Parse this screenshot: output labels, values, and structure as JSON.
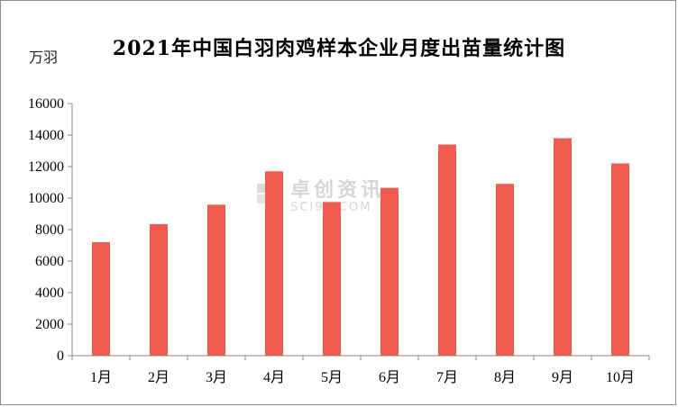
{
  "chart_data": {
    "type": "bar",
    "title": "2021年中国白羽肉鸡样本企业月度出苗量统计图",
    "ylabel": "万羽",
    "xlabel": "",
    "categories": [
      "1月",
      "2月",
      "3月",
      "4月",
      "5月",
      "6月",
      "7月",
      "8月",
      "9月",
      "10月"
    ],
    "values": [
      7200,
      8350,
      9580,
      11700,
      9750,
      10650,
      13400,
      10900,
      13800,
      12200
    ],
    "ylim": [
      0,
      16000
    ],
    "yticks": [
      "0",
      "2000",
      "4000",
      "6000",
      "8000",
      "10000",
      "12000",
      "14000",
      "16000"
    ],
    "bar_color": "#ef5b4f",
    "grid": false,
    "legend": "none"
  },
  "watermark": {
    "cn": "卓创资讯",
    "en": "SCI99.COM"
  }
}
